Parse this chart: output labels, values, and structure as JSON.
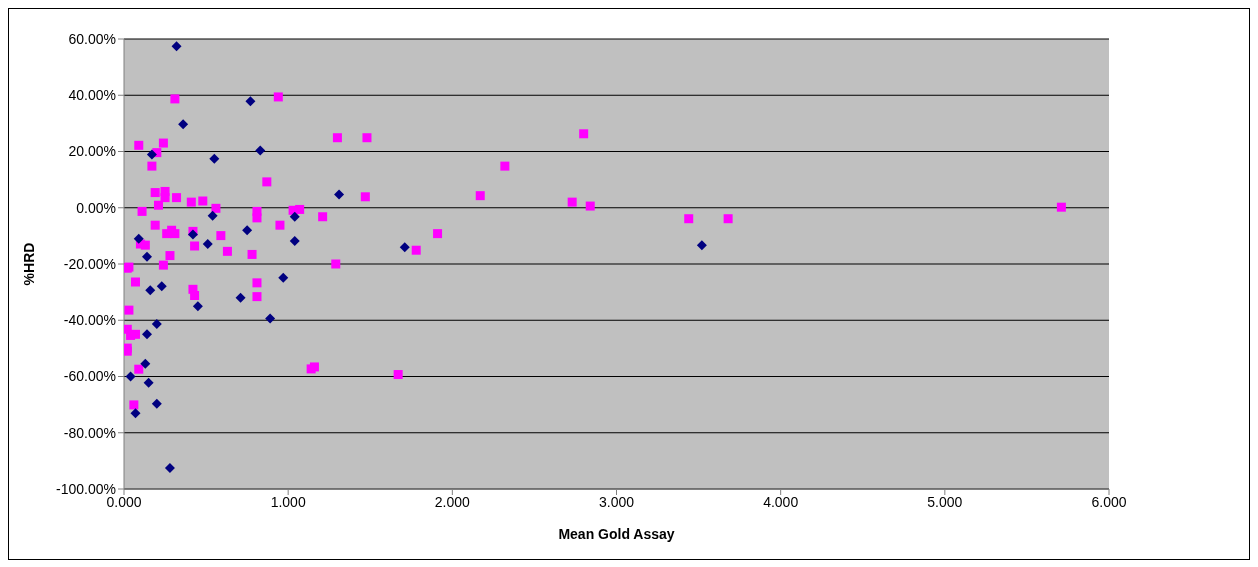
{
  "chart_data": {
    "type": "scatter",
    "xlabel": "Mean Gold Assay",
    "ylabel": "%HRD",
    "xlim": [
      0,
      6
    ],
    "xticks": [
      {
        "value": 0,
        "label": "0.000"
      },
      {
        "value": 1,
        "label": "1.000"
      },
      {
        "value": 2,
        "label": "2.000"
      },
      {
        "value": 3,
        "label": "3.000"
      },
      {
        "value": 4,
        "label": "4.000"
      },
      {
        "value": 5,
        "label": "5.000"
      },
      {
        "value": 6,
        "label": "6.000"
      }
    ],
    "ylim": [
      -100,
      60
    ],
    "yticks": [
      {
        "value": -100,
        "label": "-100.00%"
      },
      {
        "value": -80,
        "label": "-80.00%"
      },
      {
        "value": -60,
        "label": "-60.00%"
      },
      {
        "value": -40,
        "label": "-40.00%"
      },
      {
        "value": -20,
        "label": "-20.00%"
      },
      {
        "value": 0,
        "label": "0.00%"
      },
      {
        "value": 20,
        "label": "20.00%"
      },
      {
        "value": 40,
        "label": "40.00%"
      },
      {
        "value": 60,
        "label": "60.00%"
      }
    ],
    "grid": "y",
    "legend": false,
    "series": [
      {
        "color": "#000080",
        "marker": "diamond",
        "x": [
          0.32,
          0.77,
          0.36,
          0.83,
          0.55,
          0.17,
          1.31,
          1.04,
          0.54,
          0.09,
          1.04,
          0.75,
          0.51,
          0.42,
          1.71,
          3.52,
          0.14,
          0.23,
          0.16,
          0.97,
          0.45,
          0.71,
          0.89,
          0.2,
          0.14,
          0.13,
          0.04,
          0.15,
          0.2,
          0.07,
          0.28
        ],
        "values": [
          57.4,
          37.9,
          29.7,
          20.4,
          17.4,
          18.9,
          4.7,
          -3.2,
          -2.8,
          -11,
          -11.8,
          -8,
          -12.9,
          -9.5,
          -14,
          -13.3,
          -17.4,
          -27.9,
          -29.3,
          -24.9,
          -35,
          -32,
          -39.4,
          -41.3,
          -45,
          -55.5,
          -60,
          -62.2,
          -69.7,
          -73.1,
          -92.5
        ]
      },
      {
        "color": "#ff00ff",
        "marker": "square",
        "x": [
          5.71,
          3.68,
          3.44,
          2.84,
          2.73,
          2.8,
          2.32,
          2.17,
          1.91,
          1.78,
          1.67,
          1.48,
          1.47,
          1.3,
          1.29,
          1.21,
          1.16,
          1.14,
          1.07,
          1.03,
          0.94,
          0.95,
          0.87,
          0.81,
          0.81,
          0.78,
          0.81,
          0.81,
          0.31,
          0.24,
          0.09,
          0.2,
          0.17,
          0.19,
          0.25,
          0.25,
          0.32,
          0.41,
          0.48,
          0.21,
          0.11,
          0.19,
          0.26,
          0.29,
          0.31,
          0.42,
          0.43,
          0.56,
          0.59,
          0.63,
          0.13,
          0.1,
          0.28,
          0.24,
          0.07,
          0.42,
          0.43,
          0.03,
          0.02,
          0.03,
          0.02,
          0.04,
          0.07,
          0.02,
          0.02,
          0.09,
          0.06
        ],
        "values": [
          0.2,
          -3.9,
          -3.9,
          0.6,
          2,
          26.3,
          14.8,
          4.3,
          -9.2,
          -15.1,
          -59.3,
          24.9,
          3.9,
          24.9,
          -20,
          -3.2,
          -56.6,
          -57.3,
          -0.6,
          -0.9,
          39.4,
          -6.2,
          9.2,
          -1.3,
          -3.6,
          -16.6,
          -26.7,
          -31.6,
          38.7,
          23,
          22.2,
          19.6,
          14.8,
          5.4,
          5.8,
          3.6,
          3.6,
          2,
          2.4,
          0.9,
          -1.3,
          -6.2,
          -9.2,
          -8,
          -9.2,
          -8.4,
          -13.6,
          -0.2,
          -9.9,
          -15.5,
          -13.3,
          -12.9,
          -17,
          -20.4,
          -26.4,
          -29,
          -31.2,
          -21.1,
          -21.5,
          -36.4,
          -43.2,
          -45.4,
          -45,
          -49.9,
          -51,
          -57.4,
          -70.1
        ]
      }
    ]
  }
}
